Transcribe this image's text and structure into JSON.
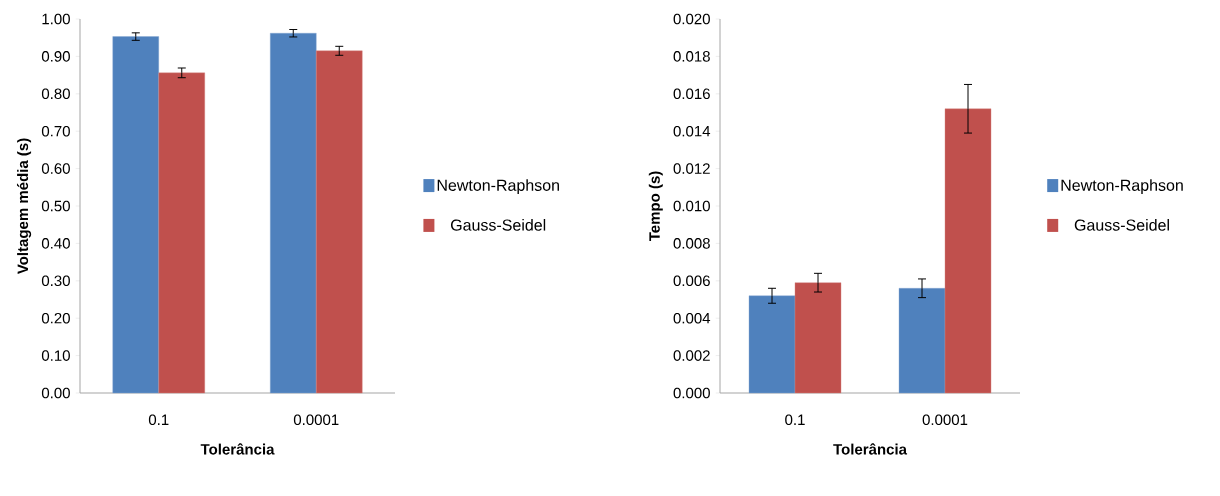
{
  "chart_data": [
    {
      "type": "bar",
      "categories": [
        "0.1",
        "0.0001"
      ],
      "xlabel": "Tolerância",
      "ylabel": "Voltagem média (s)",
      "ylim": [
        0,
        1
      ],
      "yticks": [
        {
          "value": 0,
          "label": "0.00"
        },
        {
          "value": 0.1,
          "label": "0.10"
        },
        {
          "value": 0.2,
          "label": "0.20"
        },
        {
          "value": 0.3,
          "label": "0.30"
        },
        {
          "value": 0.4,
          "label": "0.40"
        },
        {
          "value": 0.5,
          "label": "0.50"
        },
        {
          "value": 0.6,
          "label": "0.60"
        },
        {
          "value": 0.7,
          "label": "0.70"
        },
        {
          "value": 0.8,
          "label": "0.80"
        },
        {
          "value": 0.9,
          "label": "0.90"
        },
        {
          "value": 1,
          "label": "1.00"
        }
      ],
      "legend": "right",
      "series": [
        {
          "name": "Newton-Raphson",
          "color": "#4f81bd",
          "values": [
            0.953,
            0.962
          ],
          "errors": [
            0.01,
            0.01
          ]
        },
        {
          "name": "Gauss-Seidel",
          "color": "#c0504d",
          "values": [
            0.856,
            0.915
          ],
          "errors": [
            0.013,
            0.012
          ]
        }
      ]
    },
    {
      "type": "bar",
      "categories": [
        "0.1",
        "0.0001"
      ],
      "xlabel": "Tolerância",
      "ylabel": "Tempo (s)",
      "ylim": [
        0,
        0.02
      ],
      "yticks": [
        {
          "value": 0,
          "label": "0.000"
        },
        {
          "value": 0.002,
          "label": "0.002"
        },
        {
          "value": 0.004,
          "label": "0.004"
        },
        {
          "value": 0.006,
          "label": "0.006"
        },
        {
          "value": 0.008,
          "label": "0.008"
        },
        {
          "value": 0.01,
          "label": "0.010"
        },
        {
          "value": 0.012,
          "label": "0.012"
        },
        {
          "value": 0.014,
          "label": "0.014"
        },
        {
          "value": 0.016,
          "label": "0.016"
        },
        {
          "value": 0.018,
          "label": "0.018"
        },
        {
          "value": 0.02,
          "label": "0.020"
        }
      ],
      "legend": "right",
      "series": [
        {
          "name": "Newton-Raphson",
          "color": "#4f81bd",
          "values": [
            0.0052,
            0.0056
          ],
          "errors": [
            0.0004,
            0.0005
          ]
        },
        {
          "name": "Gauss-Seidel",
          "color": "#c0504d",
          "values": [
            0.0059,
            0.0152
          ],
          "errors": [
            0.0005,
            0.0013
          ]
        }
      ]
    }
  ]
}
